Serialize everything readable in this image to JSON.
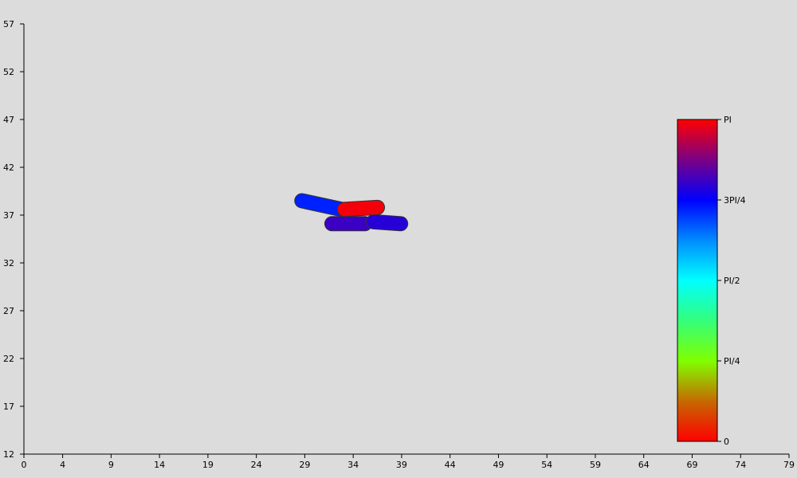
{
  "chart_data": {
    "type": "scatter",
    "title": "",
    "xlabel": "",
    "ylabel": "",
    "xlim": [
      0,
      79
    ],
    "ylim": [
      12,
      57
    ],
    "x_ticks": [
      0,
      4,
      9,
      14,
      19,
      24,
      29,
      34,
      39,
      44,
      49,
      54,
      59,
      64,
      69,
      74,
      79
    ],
    "y_ticks": [
      12,
      17,
      22,
      27,
      32,
      37,
      42,
      47,
      52,
      57
    ],
    "grid": false,
    "segments": [
      {
        "x1": 28.7,
        "y1": 38.5,
        "x2": 32.8,
        "y2": 37.6,
        "angle_fraction": 0.72
      },
      {
        "x1": 31.8,
        "y1": 36.1,
        "x2": 35.2,
        "y2": 36.1,
        "angle_fraction": 0.81
      },
      {
        "x1": 36.1,
        "y1": 36.3,
        "x2": 38.9,
        "y2": 36.1,
        "angle_fraction": 0.79
      },
      {
        "x1": 33.1,
        "y1": 37.6,
        "x2": 36.5,
        "y2": 37.8,
        "angle_fraction": 0.99
      }
    ],
    "colorbar": {
      "labels": [
        {
          "text": "PI",
          "fraction": 1.0
        },
        {
          "text": "3PI/4",
          "fraction": 0.75
        },
        {
          "text": "PI/2",
          "fraction": 0.5
        },
        {
          "text": "PI/4",
          "fraction": 0.25
        },
        {
          "text": "0",
          "fraction": 0.0
        }
      ],
      "gradient_stops": [
        {
          "fraction": 0.0,
          "color": "#ff0000"
        },
        {
          "fraction": 0.12,
          "color": "#c86400"
        },
        {
          "fraction": 0.25,
          "color": "#80ff00"
        },
        {
          "fraction": 0.38,
          "color": "#30ff80"
        },
        {
          "fraction": 0.5,
          "color": "#00ffff"
        },
        {
          "fraction": 0.62,
          "color": "#0090ff"
        },
        {
          "fraction": 0.75,
          "color": "#0000ff"
        },
        {
          "fraction": 0.88,
          "color": "#800080"
        },
        {
          "fraction": 1.0,
          "color": "#ff0000"
        }
      ]
    }
  }
}
